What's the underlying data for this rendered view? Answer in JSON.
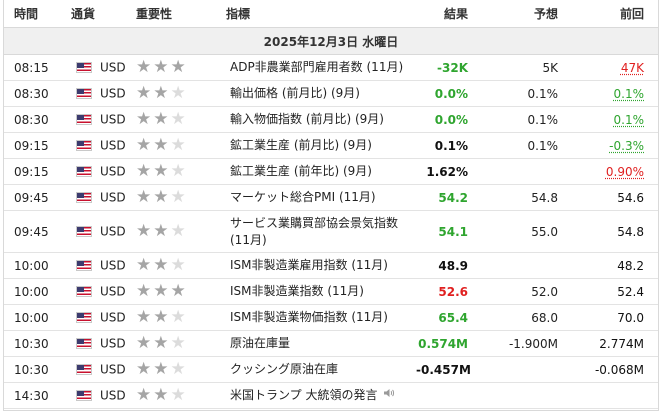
{
  "headers": {
    "time": "時間",
    "currency": "通貨",
    "importance": "重要性",
    "indicator": "指標",
    "actual": "結果",
    "forecast": "予想",
    "previous": "前回"
  },
  "date_label": "2025年12月3日 水曜日",
  "colors": {
    "positive": "#2fa52f",
    "negative": "#e02020",
    "star_on": "#a5a5a5",
    "star_off": "#dcdcdc"
  },
  "rows": [
    {
      "time": "08:15",
      "currency": "USD",
      "importance": 3,
      "indicator": "ADP非農業部門雇用者数 (11月)",
      "actual": "-32K",
      "actual_color": "green",
      "forecast": "5K",
      "previous": "47K",
      "previous_color": "red",
      "previous_revised": true
    },
    {
      "time": "08:30",
      "currency": "USD",
      "importance": 2,
      "indicator": "輸出価格 (前月比) (9月)",
      "actual": "0.0%",
      "actual_color": "green",
      "forecast": "0.1%",
      "previous": "0.1%",
      "previous_color": "green",
      "previous_revised": true
    },
    {
      "time": "08:30",
      "currency": "USD",
      "importance": 2,
      "indicator": "輸入物価指数 (前月比) (9月)",
      "actual": "0.0%",
      "actual_color": "green",
      "forecast": "0.1%",
      "previous": "0.1%",
      "previous_color": "green",
      "previous_revised": true
    },
    {
      "time": "09:15",
      "currency": "USD",
      "importance": 2,
      "indicator": "鉱工業生産 (前月比) (9月)",
      "actual": "0.1%",
      "actual_color": "black",
      "forecast": "0.1%",
      "previous": "-0.3%",
      "previous_color": "green",
      "previous_revised": true
    },
    {
      "time": "09:15",
      "currency": "USD",
      "importance": 2,
      "indicator": "鉱工業生産 (前年比) (9月)",
      "actual": "1.62%",
      "actual_color": "black",
      "forecast": "",
      "previous": "0.90%",
      "previous_color": "red",
      "previous_revised": true
    },
    {
      "time": "09:45",
      "currency": "USD",
      "importance": 2,
      "indicator": "マーケット総合PMI (11月)",
      "actual": "54.2",
      "actual_color": "green",
      "forecast": "54.8",
      "previous": "54.6",
      "previous_color": "black",
      "previous_revised": false
    },
    {
      "time": "09:45",
      "currency": "USD",
      "importance": 2,
      "indicator": "サービス業購買部協会景気指数 (11月)",
      "actual": "54.1",
      "actual_color": "green",
      "forecast": "55.0",
      "previous": "54.8",
      "previous_color": "black",
      "previous_revised": false,
      "tall": true
    },
    {
      "time": "10:00",
      "currency": "USD",
      "importance": 2,
      "indicator": "ISM非製造業雇用指数 (11月)",
      "actual": "48.9",
      "actual_color": "black",
      "forecast": "",
      "previous": "48.2",
      "previous_color": "black",
      "previous_revised": false
    },
    {
      "time": "10:00",
      "currency": "USD",
      "importance": 3,
      "indicator": "ISM非製造業指数 (11月)",
      "actual": "52.6",
      "actual_color": "red",
      "forecast": "52.0",
      "previous": "52.4",
      "previous_color": "black",
      "previous_revised": false
    },
    {
      "time": "10:00",
      "currency": "USD",
      "importance": 2,
      "indicator": "ISM非製造業物価指数 (11月)",
      "actual": "65.4",
      "actual_color": "green",
      "forecast": "68.0",
      "previous": "70.0",
      "previous_color": "black",
      "previous_revised": false
    },
    {
      "time": "10:30",
      "currency": "USD",
      "importance": 2,
      "indicator": "原油在庫量",
      "actual": "0.574M",
      "actual_color": "green",
      "forecast": "-1.900M",
      "previous": "2.774M",
      "previous_color": "black",
      "previous_revised": false
    },
    {
      "time": "10:30",
      "currency": "USD",
      "importance": 2,
      "indicator": "クッシング原油在庫",
      "actual": "-0.457M",
      "actual_color": "black",
      "forecast": "",
      "previous": "-0.068M",
      "previous_color": "black",
      "previous_revised": false
    },
    {
      "time": "14:30",
      "currency": "USD",
      "importance": 2,
      "indicator": "米国トランプ 大統領の発言",
      "actual": "",
      "actual_color": "black",
      "forecast": "",
      "previous": "",
      "previous_color": "black",
      "previous_revised": false,
      "speech": true,
      "icon": "speaker-icon"
    }
  ]
}
